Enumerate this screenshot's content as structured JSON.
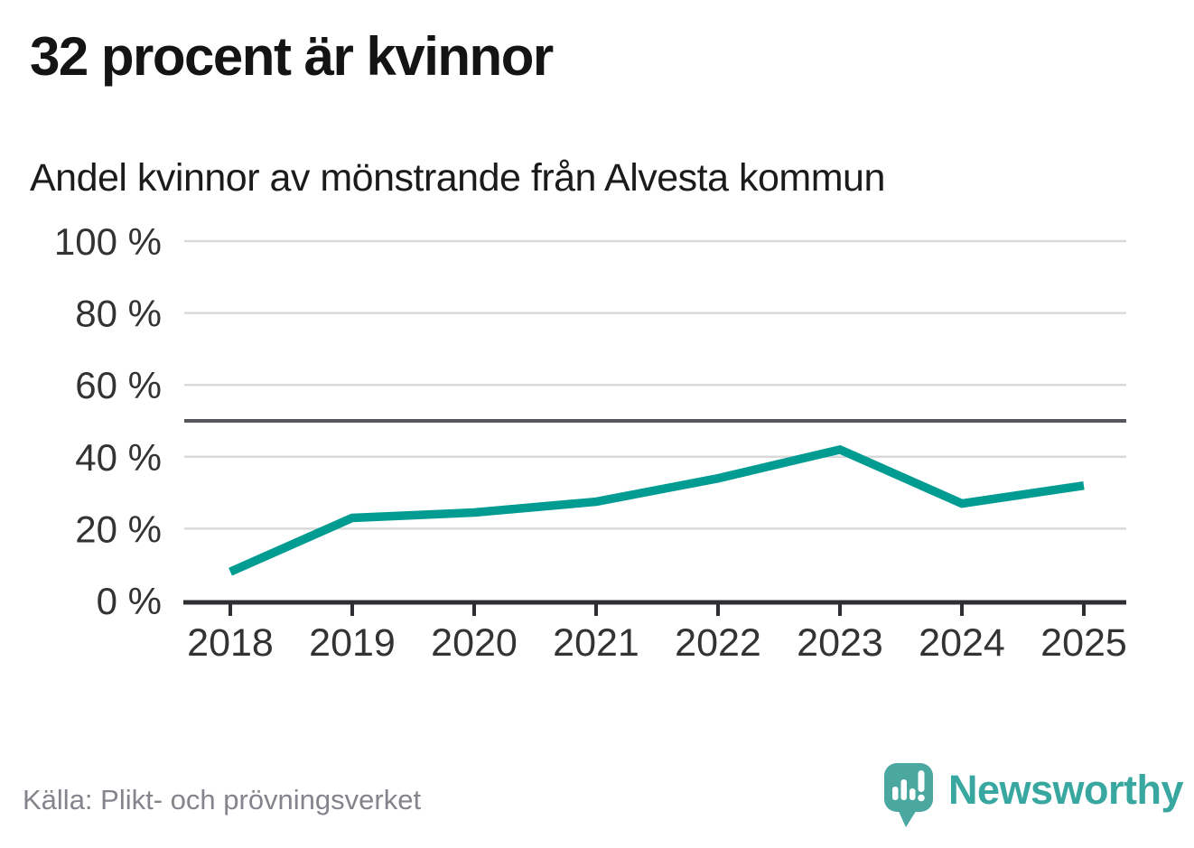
{
  "title": "32 procent är kvinnor",
  "subtitle": "Andel kvinnor av mönstrande från Alvesta kommun",
  "source": "Källa: Plikt- och prövningsverket",
  "logo": {
    "text": "Newsworthy"
  },
  "colors": {
    "line": "#009c92",
    "grid": "#d9d9d9",
    "reference_line": "#56565c",
    "axis": "#2f2f33",
    "tick_label": "#333333",
    "logo_teal": "#4aa8a0",
    "logo_text": "#38a7a0"
  },
  "chart_data": {
    "type": "line",
    "title": "32 procent är kvinnor",
    "subtitle": "Andel kvinnor av mönstrande från Alvesta kommun",
    "x": [
      "2018",
      "2019",
      "2020",
      "2021",
      "2022",
      "2023",
      "2024",
      "2025"
    ],
    "series": [
      {
        "name": "Andel kvinnor av mönstrande",
        "values": [
          8,
          23,
          24.5,
          27.5,
          34,
          42,
          27,
          32
        ]
      }
    ],
    "unit": "%",
    "ylim": [
      0,
      100
    ],
    "yticks": [
      0,
      20,
      40,
      60,
      80,
      100
    ],
    "ytick_suffix": " %",
    "reference_line": 50,
    "grid": true,
    "legend": "none",
    "xlabel": "",
    "ylabel": ""
  }
}
